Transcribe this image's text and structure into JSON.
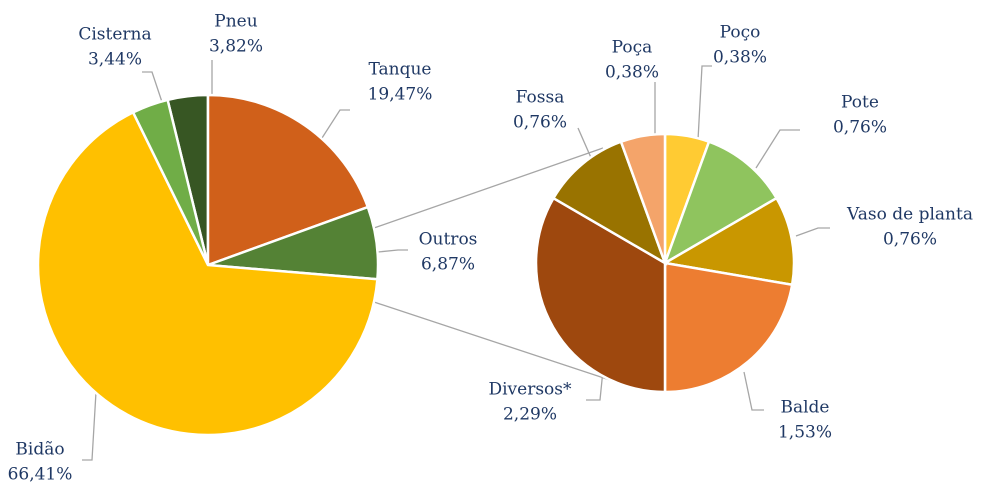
{
  "chart_data": [
    {
      "type": "pie",
      "categories": [
        "Pneu",
        "Tanque",
        "Outros",
        "Bidão",
        "Cisterna"
      ],
      "values": [
        3.82,
        19.47,
        6.87,
        66.41,
        3.44
      ],
      "value_labels": [
        "3,82%",
        "19,47%",
        "6,87%",
        "66,41%",
        "3,44%"
      ],
      "colors": [
        "#375623",
        "#d0601a",
        "#548235",
        "#ffc000",
        "#70ad47"
      ]
    },
    {
      "type": "pie",
      "categories": [
        "Poço",
        "Pote",
        "Vaso de planta",
        "Balde",
        "Diversos*",
        "Fossa",
        "Poça"
      ],
      "values": [
        0.38,
        0.76,
        0.76,
        1.53,
        2.29,
        0.76,
        0.38
      ],
      "value_labels": [
        "0,38%",
        "0,76%",
        "0,76%",
        "1,53%",
        "2,29%",
        "0,76%",
        "0,38%"
      ],
      "colors": [
        "#ffcb33",
        "#8fc45e",
        "#c99700",
        "#ed7d31",
        "#9e480e",
        "#997300",
        "#f4a46a"
      ]
    }
  ]
}
